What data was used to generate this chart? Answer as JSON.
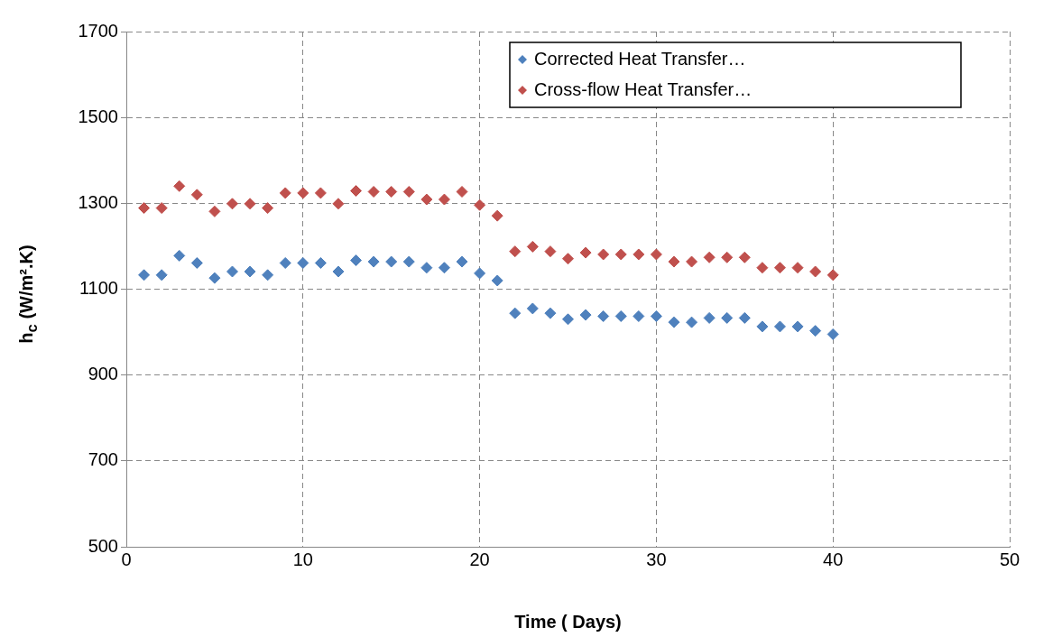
{
  "chart_data": {
    "type": "scatter",
    "xlabel": "Time ( Days)",
    "ylabel": "h$_{c}$ (W/m².K)",
    "x": [
      1,
      2,
      3,
      4,
      5,
      6,
      7,
      8,
      9,
      10,
      11,
      12,
      13,
      14,
      15,
      16,
      17,
      18,
      19,
      20,
      21,
      22,
      23,
      24,
      25,
      26,
      27,
      28,
      29,
      30,
      31,
      32,
      33,
      34,
      35,
      36,
      37,
      38,
      39,
      40
    ],
    "series": [
      {
        "name": "Corrected Heat Transfer…",
        "color": "#4f81bd",
        "values": [
          1133,
          1133,
          1178,
          1161,
          1126,
          1141,
          1141,
          1133,
          1161,
          1161,
          1161,
          1141,
          1167,
          1164,
          1164,
          1164,
          1150,
          1150,
          1164,
          1137,
          1120,
          1044,
          1055,
          1044,
          1030,
          1040,
          1037,
          1037,
          1037,
          1037,
          1023,
          1023,
          1033,
          1033,
          1033,
          1013,
          1013,
          1013,
          1003,
          995
        ]
      },
      {
        "name": "Cross-flow Heat Transfer…",
        "color": "#c0504d",
        "values": [
          1289,
          1289,
          1340,
          1320,
          1281,
          1299,
          1299,
          1289,
          1324,
          1324,
          1324,
          1299,
          1329,
          1327,
          1327,
          1327,
          1309,
          1309,
          1327,
          1296,
          1271,
          1188,
          1199,
          1188,
          1171,
          1185,
          1181,
          1181,
          1181,
          1181,
          1164,
          1164,
          1174,
          1174,
          1174,
          1150,
          1150,
          1150,
          1141,
          1133
        ]
      }
    ],
    "xlim": [
      0,
      50
    ],
    "xticks": [
      0,
      10,
      20,
      30,
      40,
      50
    ],
    "ylim": [
      500,
      1700
    ],
    "yticks": [
      500,
      700,
      900,
      1100,
      1300,
      1500,
      1700
    ],
    "grid": true,
    "legend": "top right",
    "marker": "diamond"
  }
}
